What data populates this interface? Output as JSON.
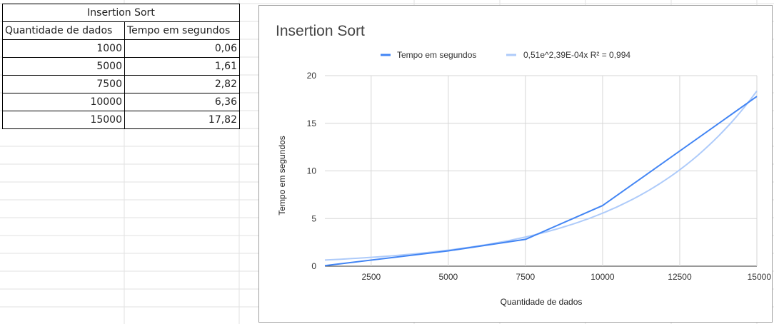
{
  "table": {
    "title": "Insertion Sort",
    "headers": [
      "Quantidade de dados",
      "Tempo em segundos"
    ],
    "rows": [
      [
        "1000",
        "0,06"
      ],
      [
        "5000",
        "1,61"
      ],
      [
        "7500",
        "2,82"
      ],
      [
        "10000",
        "6,36"
      ],
      [
        "15000",
        "17,82"
      ]
    ]
  },
  "chart_data": {
    "type": "line",
    "title": "Insertion Sort",
    "xlabel": "Quantidade de dados",
    "ylabel": "Tempo em segundos",
    "xlim": [
      1000,
      15000
    ],
    "ylim": [
      0,
      20
    ],
    "x_ticks": [
      2500,
      5000,
      7500,
      10000,
      12500,
      15000
    ],
    "x_tick_labels": [
      "2500",
      "5000",
      "7500",
      "10000",
      "12500",
      "15000"
    ],
    "y_ticks": [
      0,
      5,
      10,
      15,
      20
    ],
    "y_tick_labels": [
      "0",
      "5",
      "10",
      "15",
      "20"
    ],
    "grid": true,
    "legend_position": "top",
    "series": [
      {
        "name": "Tempo em segundos",
        "color": "#4285f4",
        "x": [
          1000,
          5000,
          7500,
          10000,
          15000
        ],
        "y": [
          0.06,
          1.61,
          2.82,
          6.36,
          17.82
        ]
      },
      {
        "name": "0,51e^2,39E-04x R² = 0,994",
        "color": "#aecbfa",
        "trendline": {
          "kind": "exponential",
          "a": 0.51,
          "b": 0.000239,
          "x_range": [
            1000,
            15000
          ]
        }
      }
    ]
  }
}
